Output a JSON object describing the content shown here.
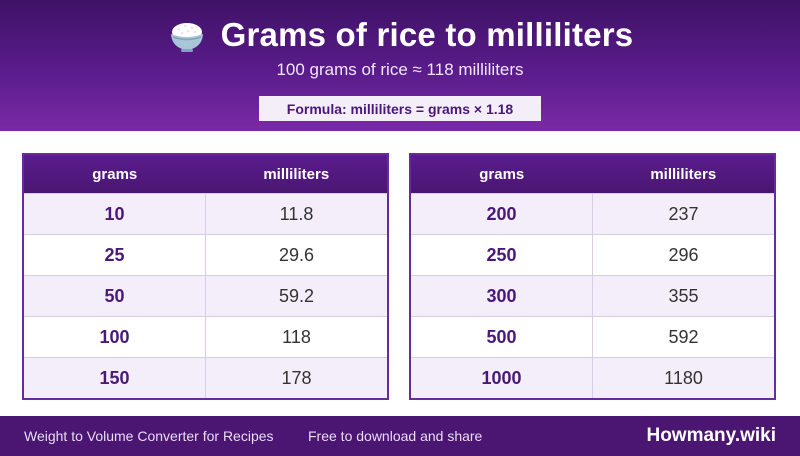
{
  "header": {
    "icon": "rice-bowl-icon",
    "title": "Grams of rice to milliliters",
    "subtitle": "100 grams of rice ≈ 118 milliliters",
    "formula": "Formula: milliliters = grams × 1.18"
  },
  "tables": [
    {
      "headers": [
        "grams",
        "milliliters"
      ],
      "rows": [
        {
          "grams": "10",
          "ml": "11.8"
        },
        {
          "grams": "25",
          "ml": "29.6"
        },
        {
          "grams": "50",
          "ml": "59.2"
        },
        {
          "grams": "100",
          "ml": "118"
        },
        {
          "grams": "150",
          "ml": "178"
        }
      ]
    },
    {
      "headers": [
        "grams",
        "milliliters"
      ],
      "rows": [
        {
          "grams": "200",
          "ml": "237"
        },
        {
          "grams": "250",
          "ml": "296"
        },
        {
          "grams": "300",
          "ml": "355"
        },
        {
          "grams": "500",
          "ml": "592"
        },
        {
          "grams": "1000",
          "ml": "1180"
        }
      ]
    }
  ],
  "footer": {
    "description": "Weight to Volume Converter for Recipes",
    "tagline": "Free to download and share",
    "brand": "Howmany.wiki"
  },
  "colors": {
    "header_dark": "#3f1266",
    "header_light": "#7a2aa6",
    "accent_text": "#4a1878",
    "row_alt": "#f4eefa",
    "footer_bg": "#4a1672"
  }
}
